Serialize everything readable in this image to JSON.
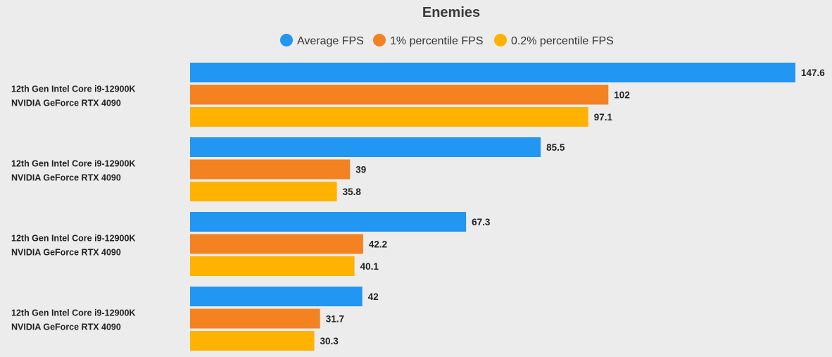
{
  "chart_data": {
    "type": "bar",
    "orientation": "horizontal",
    "title": "Enemies",
    "categories": [
      [
        "12th Gen Intel Core i9-12900K",
        "NVIDIA GeForce RTX 4090"
      ],
      [
        "12th Gen Intel Core i9-12900K",
        "NVIDIA GeForce RTX 4090"
      ],
      [
        "12th Gen Intel Core i9-12900K",
        "NVIDIA GeForce RTX 4090"
      ],
      [
        "12th Gen Intel Core i9-12900K",
        "NVIDIA GeForce RTX 4090"
      ]
    ],
    "series": [
      {
        "name": "Average FPS",
        "color": "#2196f3",
        "values": [
          147.6,
          85.5,
          67.3,
          42
        ]
      },
      {
        "name": "1% percentile FPS",
        "color": "#f58220",
        "values": [
          102,
          39,
          42.2,
          31.7
        ]
      },
      {
        "name": "0.2% percentile FPS",
        "color": "#ffb300",
        "values": [
          97.1,
          35.8,
          40.1,
          30.3
        ]
      }
    ],
    "xlim": [
      0,
      147.6
    ],
    "grid": false,
    "legend_position": "top-center",
    "xlabel": "",
    "ylabel": ""
  }
}
